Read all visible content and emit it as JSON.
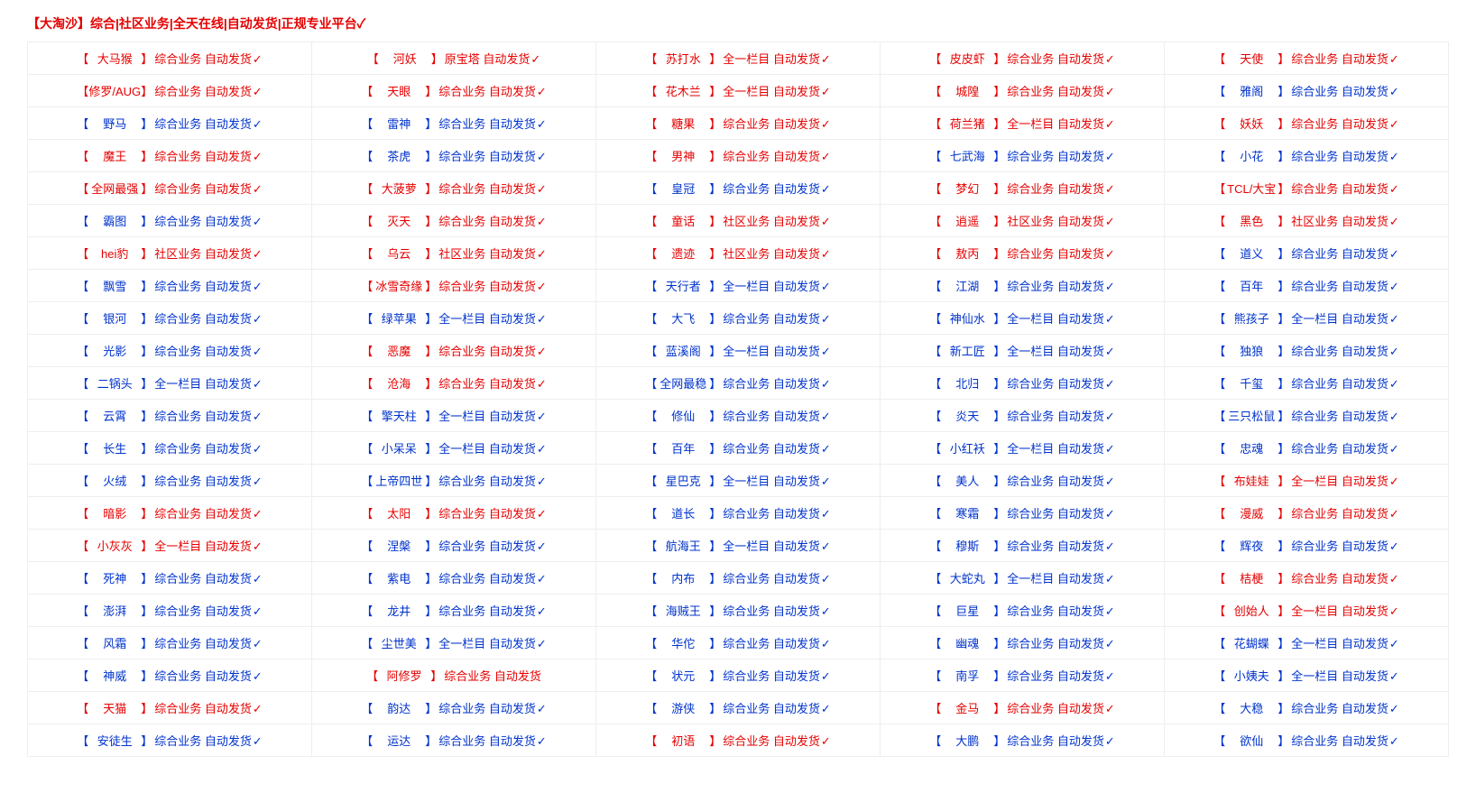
{
  "header": {
    "title": "【大淘沙】综合|社区业务|全天在线|自动发货|正规专业平台✓",
    "color": "#e60000"
  },
  "colors": {
    "red": "#e60000",
    "blue": "#0033cc",
    "border": "#eeeeee"
  },
  "legend": {
    "desc_zh": "综合业务",
    "desc_sq": "社区业务",
    "desc_ql": "全一栏目",
    "ship": "自动发货",
    "check": "✓"
  },
  "rows": [
    [
      {
        "name": "大马猴",
        "desc": "综合业务 自动发货",
        "check": true,
        "color": "red"
      },
      {
        "name": "河妖",
        "desc": "原宝塔 自动发货",
        "check": true,
        "color": "red"
      },
      {
        "name": "苏打水",
        "desc": "全一栏目 自动发货",
        "check": true,
        "color": "red"
      },
      {
        "name": "皮皮虾",
        "desc": "综合业务 自动发货",
        "check": true,
        "color": "red"
      },
      {
        "name": "天使",
        "desc": "综合业务 自动发货",
        "check": true,
        "color": "red"
      }
    ],
    [
      {
        "name": "修罗/AUG",
        "desc": "综合业务 自动发货",
        "check": true,
        "color": "red"
      },
      {
        "name": "天眼",
        "desc": "综合业务 自动发货",
        "check": true,
        "color": "red"
      },
      {
        "name": "花木兰",
        "desc": "全一栏目 自动发货",
        "check": true,
        "color": "red"
      },
      {
        "name": "城隍",
        "desc": "综合业务 自动发货",
        "check": true,
        "color": "red"
      },
      {
        "name": "雅阁",
        "desc": "综合业务 自动发货",
        "check": true,
        "color": "blue"
      }
    ],
    [
      {
        "name": "野马",
        "desc": "综合业务 自动发货",
        "check": true,
        "color": "blue"
      },
      {
        "name": "雷神",
        "desc": "综合业务 自动发货",
        "check": true,
        "color": "blue"
      },
      {
        "name": "糖果",
        "desc": "综合业务 自动发货",
        "check": true,
        "color": "red"
      },
      {
        "name": "荷兰猪",
        "desc": "全一栏目 自动发货",
        "check": true,
        "color": "red"
      },
      {
        "name": "妖妖",
        "desc": "综合业务 自动发货",
        "check": true,
        "color": "red"
      }
    ],
    [
      {
        "name": "魔王",
        "desc": "综合业务 自动发货",
        "check": true,
        "color": "red"
      },
      {
        "name": "茶虎",
        "desc": "综合业务 自动发货",
        "check": true,
        "color": "blue"
      },
      {
        "name": "男神",
        "desc": "综合业务 自动发货",
        "check": true,
        "color": "red"
      },
      {
        "name": "七武海",
        "desc": "综合业务 自动发货",
        "check": true,
        "color": "blue"
      },
      {
        "name": "小花",
        "desc": "综合业务 自动发货",
        "check": true,
        "color": "blue"
      }
    ],
    [
      {
        "name": "全网最强",
        "desc": "综合业务 自动发货",
        "check": true,
        "color": "red"
      },
      {
        "name": "大菠萝",
        "desc": "综合业务 自动发货",
        "check": true,
        "color": "red"
      },
      {
        "name": "皇冠",
        "desc": "综合业务 自动发货",
        "check": true,
        "color": "blue"
      },
      {
        "name": "梦幻",
        "desc": "综合业务 自动发货",
        "check": true,
        "color": "red"
      },
      {
        "name": "TCL/大宝",
        "desc": "综合业务 自动发货",
        "check": true,
        "color": "red"
      }
    ],
    [
      {
        "name": "霸图",
        "desc": "综合业务 自动发货",
        "check": true,
        "color": "blue"
      },
      {
        "name": "灭天",
        "desc": "综合业务 自动发货",
        "check": true,
        "color": "red"
      },
      {
        "name": "童话",
        "desc": "社区业务 自动发货",
        "check": true,
        "color": "red"
      },
      {
        "name": "逍遥",
        "desc": "社区业务 自动发货",
        "check": true,
        "color": "red"
      },
      {
        "name": "黑色",
        "desc": "社区业务 自动发货",
        "check": true,
        "color": "red"
      }
    ],
    [
      {
        "name": "hei豹",
        "desc": "社区业务 自动发货",
        "check": true,
        "color": "red"
      },
      {
        "name": "乌云",
        "desc": "社区业务 自动发货",
        "check": true,
        "color": "red"
      },
      {
        "name": "遗迹",
        "desc": "社区业务 自动发货",
        "check": true,
        "color": "red"
      },
      {
        "name": "敖丙",
        "desc": "综合业务 自动发货",
        "check": true,
        "color": "red"
      },
      {
        "name": "道义",
        "desc": "综合业务 自动发货",
        "check": true,
        "color": "blue"
      }
    ],
    [
      {
        "name": "飘雪",
        "desc": "综合业务 自动发货",
        "check": true,
        "color": "blue"
      },
      {
        "name": "冰雪奇缘",
        "desc": "综合业务 自动发货",
        "check": true,
        "color": "red"
      },
      {
        "name": "天行者",
        "desc": "全一栏目 自动发货",
        "check": true,
        "color": "blue"
      },
      {
        "name": "江湖",
        "desc": "综合业务 自动发货",
        "check": true,
        "color": "blue"
      },
      {
        "name": "百年",
        "desc": "综合业务 自动发货",
        "check": true,
        "color": "blue"
      }
    ],
    [
      {
        "name": "银河",
        "desc": "综合业务 自动发货",
        "check": true,
        "color": "blue"
      },
      {
        "name": "绿苹果",
        "desc": "全一栏目 自动发货",
        "check": true,
        "color": "blue"
      },
      {
        "name": "大飞",
        "desc": "综合业务 自动发货",
        "check": true,
        "color": "blue"
      },
      {
        "name": "神仙水",
        "desc": "全一栏目 自动发货",
        "check": true,
        "color": "blue"
      },
      {
        "name": "熊孩子",
        "desc": "全一栏目 自动发货",
        "check": true,
        "color": "blue"
      }
    ],
    [
      {
        "name": "光影",
        "desc": "综合业务 自动发货",
        "check": true,
        "color": "blue"
      },
      {
        "name": "恶魔",
        "desc": "综合业务 自动发货",
        "check": true,
        "color": "red"
      },
      {
        "name": "蓝溪阁",
        "desc": "全一栏目 自动发货",
        "check": true,
        "color": "blue"
      },
      {
        "name": "新工匠",
        "desc": "全一栏目 自动发货",
        "check": true,
        "color": "blue"
      },
      {
        "name": "独狼",
        "desc": "综合业务 自动发货",
        "check": true,
        "color": "blue"
      }
    ],
    [
      {
        "name": "二锅头",
        "desc": "全一栏目 自动发货",
        "check": true,
        "color": "blue"
      },
      {
        "name": "沧海",
        "desc": "综合业务 自动发货",
        "check": true,
        "color": "red"
      },
      {
        "name": "全网最稳",
        "desc": "综合业务 自动发货",
        "check": true,
        "color": "blue"
      },
      {
        "name": "北归",
        "desc": "综合业务 自动发货",
        "check": true,
        "color": "blue"
      },
      {
        "name": "千玺",
        "desc": "综合业务 自动发货",
        "check": true,
        "color": "blue"
      }
    ],
    [
      {
        "name": "云霄",
        "desc": "综合业务 自动发货",
        "check": true,
        "color": "blue"
      },
      {
        "name": "擎天柱",
        "desc": "全一栏目 自动发货",
        "check": true,
        "color": "blue"
      },
      {
        "name": "修仙",
        "desc": "综合业务 自动发货",
        "check": true,
        "color": "blue"
      },
      {
        "name": "炎天",
        "desc": "综合业务 自动发货",
        "check": true,
        "color": "blue"
      },
      {
        "name": "三只松鼠",
        "desc": "综合业务 自动发货",
        "check": true,
        "color": "blue"
      }
    ],
    [
      {
        "name": "长生",
        "desc": "综合业务 自动发货",
        "check": true,
        "color": "blue"
      },
      {
        "name": "小呆呆",
        "desc": "全一栏目 自动发货",
        "check": true,
        "color": "blue"
      },
      {
        "name": "百年",
        "desc": "综合业务 自动发货",
        "check": true,
        "color": "blue"
      },
      {
        "name": "小红袄",
        "desc": "全一栏目 自动发货",
        "check": true,
        "color": "blue"
      },
      {
        "name": "忠魂",
        "desc": "综合业务 自动发货",
        "check": true,
        "color": "blue"
      }
    ],
    [
      {
        "name": "火绒",
        "desc": "综合业务 自动发货",
        "check": true,
        "color": "blue"
      },
      {
        "name": "上帝四世",
        "desc": "综合业务 自动发货",
        "check": true,
        "color": "blue"
      },
      {
        "name": "星巴克",
        "desc": "全一栏目 自动发货",
        "check": true,
        "color": "blue"
      },
      {
        "name": "美人",
        "desc": "综合业务 自动发货",
        "check": true,
        "color": "blue"
      },
      {
        "name": "布娃娃",
        "desc": "全一栏目 自动发货",
        "check": true,
        "color": "red"
      }
    ],
    [
      {
        "name": "暗影",
        "desc": "综合业务 自动发货",
        "check": true,
        "color": "red"
      },
      {
        "name": "太阳",
        "desc": "综合业务 自动发货",
        "check": true,
        "color": "red"
      },
      {
        "name": "道长",
        "desc": "综合业务 自动发货",
        "check": true,
        "color": "blue"
      },
      {
        "name": "寒霜",
        "desc": "综合业务 自动发货",
        "check": true,
        "color": "blue"
      },
      {
        "name": "漫威",
        "desc": "综合业务 自动发货",
        "check": true,
        "color": "red"
      }
    ],
    [
      {
        "name": "小灰灰",
        "desc": "全一栏目 自动发货",
        "check": true,
        "color": "red"
      },
      {
        "name": "涅槃",
        "desc": "综合业务 自动发货",
        "check": true,
        "color": "blue"
      },
      {
        "name": "航海王",
        "desc": "全一栏目 自动发货",
        "check": true,
        "color": "blue"
      },
      {
        "name": "穆斯",
        "desc": "综合业务 自动发货",
        "check": true,
        "color": "blue"
      },
      {
        "name": "辉夜",
        "desc": "综合业务 自动发货",
        "check": true,
        "color": "blue"
      }
    ],
    [
      {
        "name": "死神",
        "desc": "综合业务 自动发货",
        "check": true,
        "color": "blue"
      },
      {
        "name": "紫电",
        "desc": "综合业务 自动发货",
        "check": true,
        "color": "blue"
      },
      {
        "name": "内布",
        "desc": "综合业务 自动发货",
        "check": true,
        "color": "blue"
      },
      {
        "name": "大蛇丸",
        "desc": "全一栏目 自动发货",
        "check": true,
        "color": "blue"
      },
      {
        "name": "桔梗",
        "desc": "综合业务 自动发货",
        "check": true,
        "color": "red"
      }
    ],
    [
      {
        "name": "澎湃",
        "desc": "综合业务 自动发货",
        "check": true,
        "color": "blue"
      },
      {
        "name": "龙井",
        "desc": "综合业务 自动发货",
        "check": true,
        "color": "blue"
      },
      {
        "name": "海贼王",
        "desc": "综合业务 自动发货",
        "check": true,
        "color": "blue"
      },
      {
        "name": "巨星",
        "desc": "综合业务 自动发货",
        "check": true,
        "color": "blue"
      },
      {
        "name": "创始人",
        "desc": "全一栏目 自动发货",
        "check": true,
        "color": "red"
      }
    ],
    [
      {
        "name": "风霜",
        "desc": "综合业务 自动发货",
        "check": true,
        "color": "blue"
      },
      {
        "name": "尘世美",
        "desc": "全一栏目 自动发货",
        "check": true,
        "color": "blue"
      },
      {
        "name": "华佗",
        "desc": "综合业务 自动发货",
        "check": true,
        "color": "blue"
      },
      {
        "name": "幽魂",
        "desc": "综合业务 自动发货",
        "check": true,
        "color": "blue"
      },
      {
        "name": "花蝴蝶",
        "desc": "全一栏目 自动发货",
        "check": true,
        "color": "blue"
      }
    ],
    [
      {
        "name": "神威",
        "desc": "综合业务 自动发货",
        "check": true,
        "color": "blue"
      },
      {
        "name": "阿修罗",
        "desc": "综合业务 自动发货",
        "check": false,
        "color": "red"
      },
      {
        "name": "状元",
        "desc": "综合业务 自动发货",
        "check": true,
        "color": "blue"
      },
      {
        "name": "南孚",
        "desc": "综合业务 自动发货",
        "check": true,
        "color": "blue"
      },
      {
        "name": "小姨夫",
        "desc": "全一栏目 自动发货",
        "check": true,
        "color": "blue"
      }
    ],
    [
      {
        "name": "天猫",
        "desc": "综合业务 自动发货",
        "check": true,
        "color": "red"
      },
      {
        "name": "韵达",
        "desc": "综合业务 自动发货",
        "check": true,
        "color": "blue"
      },
      {
        "name": "游侠",
        "desc": "综合业务 自动发货",
        "check": true,
        "color": "blue"
      },
      {
        "name": "金马",
        "desc": "综合业务 自动发货",
        "check": true,
        "color": "red"
      },
      {
        "name": "大稳",
        "desc": "综合业务 自动发货",
        "check": true,
        "color": "blue"
      }
    ],
    [
      {
        "name": "安徒生",
        "desc": "综合业务 自动发货",
        "check": true,
        "color": "blue"
      },
      {
        "name": "运达",
        "desc": "综合业务 自动发货",
        "check": true,
        "color": "blue"
      },
      {
        "name": "初语",
        "desc": "综合业务 自动发货",
        "check": true,
        "color": "red"
      },
      {
        "name": "大鹏",
        "desc": "综合业务 自动发货",
        "check": true,
        "color": "blue"
      },
      {
        "name": "欲仙",
        "desc": "综合业务 自动发货",
        "check": true,
        "color": "blue"
      }
    ]
  ]
}
